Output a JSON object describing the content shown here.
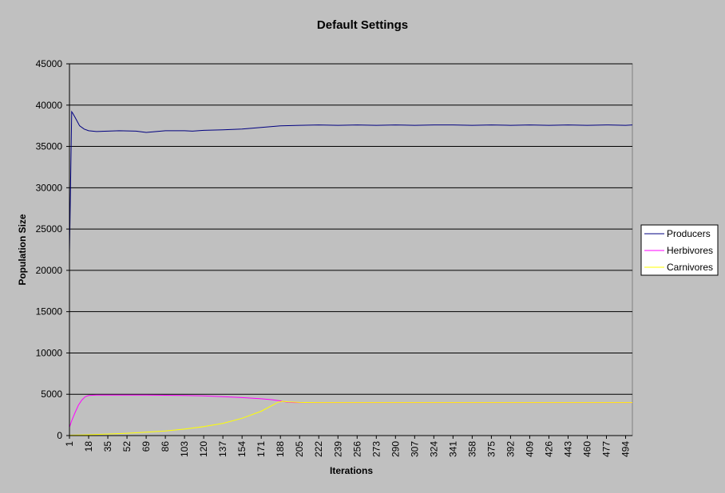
{
  "chart_data": {
    "type": "line",
    "title": "Default Settings",
    "xlabel": "Iterations",
    "ylabel": "Population Size",
    "ylim": [
      0,
      45000
    ],
    "y_ticks": [
      0,
      5000,
      10000,
      15000,
      20000,
      25000,
      30000,
      35000,
      40000,
      45000
    ],
    "x_range": [
      1,
      500
    ],
    "x_tick_labels": [
      "1",
      "18",
      "35",
      "52",
      "69",
      "86",
      "103",
      "120",
      "137",
      "154",
      "171",
      "188",
      "205",
      "222",
      "239",
      "256",
      "273",
      "290",
      "307",
      "324",
      "341",
      "358",
      "375",
      "392",
      "409",
      "426",
      "443",
      "460",
      "477",
      "494"
    ],
    "grid": "horizontal",
    "legend_position": "right",
    "series": [
      {
        "name": "Producers",
        "color": "#000080",
        "x": [
          1,
          2,
          3,
          4,
          6,
          8,
          10,
          14,
          18,
          25,
          35,
          45,
          60,
          69,
          86,
          103,
          110,
          120,
          137,
          154,
          171,
          188,
          205,
          222,
          239,
          256,
          273,
          290,
          307,
          324,
          341,
          358,
          375,
          392,
          409,
          426,
          443,
          460,
          477,
          494,
          500
        ],
        "y": [
          22000,
          30500,
          39200,
          39000,
          38500,
          38000,
          37500,
          37100,
          36900,
          36800,
          36850,
          36900,
          36850,
          36700,
          36900,
          36900,
          36850,
          36950,
          37000,
          37100,
          37300,
          37500,
          37550,
          37600,
          37550,
          37600,
          37550,
          37600,
          37550,
          37600,
          37600,
          37550,
          37600,
          37550,
          37600,
          37550,
          37600,
          37550,
          37600,
          37550,
          37600
        ]
      },
      {
        "name": "Herbivores",
        "color": "#ff00ff",
        "x": [
          1,
          3,
          6,
          9,
          12,
          15,
          18,
          25,
          35,
          52,
          69,
          86,
          103,
          120,
          137,
          154,
          171,
          180,
          188,
          194,
          200,
          205,
          222,
          256,
          300,
          350,
          400,
          450,
          500
        ],
        "y": [
          1000,
          1800,
          2800,
          3700,
          4300,
          4700,
          4850,
          4900,
          4900,
          4900,
          4900,
          4880,
          4850,
          4800,
          4700,
          4600,
          4450,
          4350,
          4200,
          4050,
          4000,
          4000,
          4000,
          4000,
          4000,
          4000,
          4000,
          4000,
          4000
        ]
      },
      {
        "name": "Carnivores",
        "color": "#ffff00",
        "x": [
          1,
          18,
          35,
          52,
          69,
          86,
          103,
          120,
          137,
          154,
          171,
          180,
          186,
          190,
          195,
          205,
          222,
          256,
          300,
          350,
          400,
          450,
          500
        ],
        "y": [
          50,
          100,
          180,
          280,
          420,
          560,
          780,
          1080,
          1480,
          2100,
          2950,
          3600,
          4050,
          4150,
          4080,
          4020,
          4000,
          4000,
          4000,
          4000,
          4000,
          4000,
          4000
        ]
      }
    ]
  }
}
